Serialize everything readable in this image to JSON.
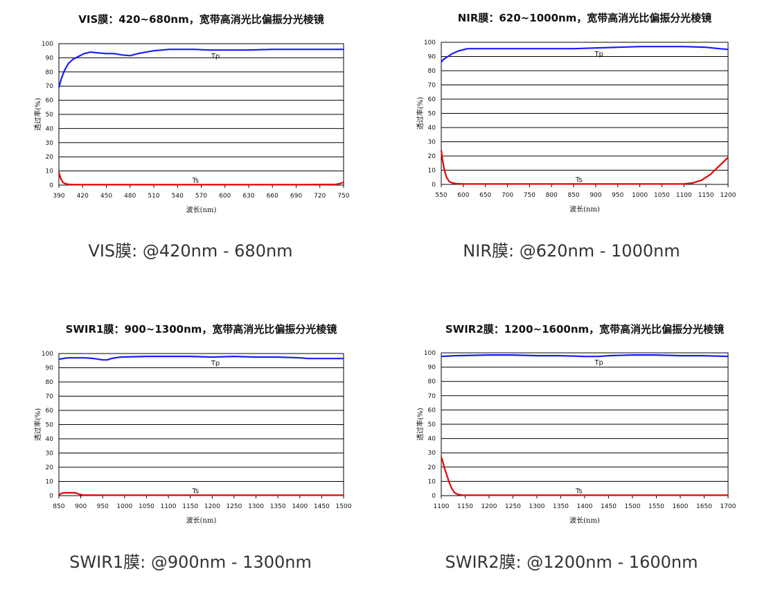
{
  "chart_data": [
    {
      "type": "line",
      "title": "VIS膜：420~680nm，宽带高消光比偏振分光棱镜",
      "caption": "VIS膜: @420nm - 680nm",
      "xlabel": "波长(nm)",
      "ylabel": "透过率(%)",
      "xlim": [
        390,
        750
      ],
      "ylim": [
        0,
        100
      ],
      "xticks": [
        390,
        420,
        450,
        480,
        510,
        540,
        570,
        600,
        630,
        660,
        690,
        720,
        750
      ],
      "yticks": [
        0,
        10,
        20,
        30,
        40,
        50,
        60,
        70,
        80,
        90,
        100
      ],
      "grid": "horizontal",
      "series": [
        {
          "name": "Tp",
          "color": "#1a1aff",
          "x": [
            390,
            393,
            397,
            402,
            408,
            415,
            422,
            430,
            440,
            450,
            460,
            470,
            480,
            490,
            500,
            510,
            520,
            530,
            545,
            560,
            580,
            600,
            630,
            660,
            690,
            720,
            750
          ],
          "y": [
            69,
            75,
            81,
            86,
            89,
            91,
            93,
            94,
            93.5,
            93,
            93,
            92,
            91.5,
            93,
            94,
            95,
            95.5,
            96,
            96,
            96,
            95.5,
            95.5,
            95.5,
            96,
            96,
            96,
            96
          ]
        },
        {
          "name": "Ts",
          "color": "#e60000",
          "x": [
            390,
            392,
            395,
            398,
            402,
            410,
            450,
            500,
            550,
            600,
            650,
            700,
            740,
            745,
            750
          ],
          "y": [
            9,
            5,
            2,
            1,
            0.5,
            0.3,
            0.3,
            0.3,
            0.3,
            0.3,
            0.3,
            0.3,
            0.5,
            1,
            2
          ]
        }
      ]
    },
    {
      "type": "line",
      "title": "NIR膜：620~1000nm，宽带高消光比偏振分光棱镜",
      "caption": "NIR膜: @620nm - 1000nm",
      "xlabel": "波长(nm)",
      "ylabel": "透过率(%)",
      "xlim": [
        550,
        1200
      ],
      "ylim": [
        0,
        100
      ],
      "xticks": [
        550,
        600,
        650,
        700,
        750,
        800,
        850,
        900,
        950,
        1000,
        1050,
        1100,
        1150,
        1200
      ],
      "yticks": [
        0,
        10,
        20,
        30,
        40,
        50,
        60,
        70,
        80,
        90,
        100
      ],
      "grid": "horizontal",
      "series": [
        {
          "name": "Tp",
          "color": "#1a1aff",
          "x": [
            550,
            555,
            565,
            575,
            590,
            610,
            650,
            750,
            850,
            900,
            950,
            1000,
            1050,
            1100,
            1150,
            1180,
            1200
          ],
          "y": [
            86,
            88,
            90,
            92,
            94,
            95.5,
            95.5,
            95.5,
            95.5,
            96,
            96.5,
            97,
            97,
            97,
            96.5,
            95.5,
            95
          ]
        },
        {
          "name": "Ts",
          "color": "#e60000",
          "x": [
            550,
            553,
            557,
            562,
            568,
            575,
            585,
            600,
            700,
            800,
            900,
            1000,
            1100,
            1120,
            1140,
            1160,
            1180,
            1200
          ],
          "y": [
            24,
            17,
            10,
            5,
            2,
            1,
            0.5,
            0.3,
            0.3,
            0.3,
            0.3,
            0.3,
            0.3,
            1,
            3,
            7,
            13,
            19
          ]
        }
      ]
    },
    {
      "type": "line",
      "title": "SWIR1膜：900~1300nm，宽带高消光比偏振分光棱镜",
      "caption": "SWIR1膜: @900nm - 1300nm",
      "xlabel": "波长(nm)",
      "ylabel": "透过率(%)",
      "xlim": [
        850,
        1500
      ],
      "ylim": [
        0,
        100
      ],
      "xticks": [
        850,
        900,
        950,
        1000,
        1050,
        1100,
        1150,
        1200,
        1250,
        1300,
        1350,
        1400,
        1450,
        1500
      ],
      "yticks": [
        0,
        10,
        20,
        30,
        40,
        50,
        60,
        70,
        80,
        90,
        100
      ],
      "grid": "horizontal",
      "series": [
        {
          "name": "Tp",
          "color": "#1a1aff",
          "x": [
            850,
            870,
            890,
            910,
            930,
            950,
            960,
            970,
            990,
            1050,
            1100,
            1150,
            1200,
            1250,
            1300,
            1350,
            1400,
            1420,
            1450,
            1500
          ],
          "y": [
            96,
            97,
            97,
            97,
            96.5,
            95.5,
            95.5,
            96.5,
            97.5,
            98,
            98,
            98,
            97.5,
            98,
            97.5,
            97.5,
            97,
            96.5,
            96.5,
            96.5
          ]
        },
        {
          "name": "Ts",
          "color": "#e60000",
          "x": [
            850,
            855,
            862,
            875,
            888,
            896,
            905,
            950,
            1050,
            1150,
            1250,
            1350,
            1450,
            1500
          ],
          "y": [
            0.5,
            1.5,
            2,
            2,
            2,
            1,
            0.4,
            0.3,
            0.3,
            0.3,
            0.3,
            0.3,
            0.3,
            0.3
          ]
        }
      ]
    },
    {
      "type": "line",
      "title": "SWIR2膜：1200~1600nm，宽带高消光比偏振分光棱镜",
      "caption": "SWIR2膜: @1200nm - 1600nm",
      "xlabel": "波长(nm)",
      "ylabel": "透过率(%)",
      "xlim": [
        1100,
        1700
      ],
      "ylim": [
        0,
        100
      ],
      "xticks": [
        1100,
        1150,
        1200,
        1250,
        1300,
        1350,
        1400,
        1450,
        1500,
        1550,
        1600,
        1650,
        1700
      ],
      "yticks": [
        0,
        10,
        20,
        30,
        40,
        50,
        60,
        70,
        80,
        90,
        100
      ],
      "grid": "horizontal",
      "series": [
        {
          "name": "Tp",
          "color": "#1a1aff",
          "x": [
            1100,
            1130,
            1200,
            1250,
            1300,
            1350,
            1400,
            1430,
            1450,
            1500,
            1550,
            1600,
            1650,
            1700
          ],
          "y": [
            97.5,
            98,
            98.5,
            98.5,
            98,
            98,
            97.5,
            97.5,
            98,
            98.5,
            98.5,
            98,
            98,
            97.5
          ]
        },
        {
          "name": "Ts",
          "color": "#e60000",
          "x": [
            1100,
            1103,
            1107,
            1112,
            1117,
            1122,
            1128,
            1135,
            1145,
            1200,
            1300,
            1400,
            1500,
            1600,
            1700
          ],
          "y": [
            27,
            24,
            19,
            14,
            9,
            5,
            2,
            0.8,
            0.3,
            0.3,
            0.3,
            0.3,
            0.3,
            0.3,
            0.3
          ]
        }
      ]
    }
  ]
}
